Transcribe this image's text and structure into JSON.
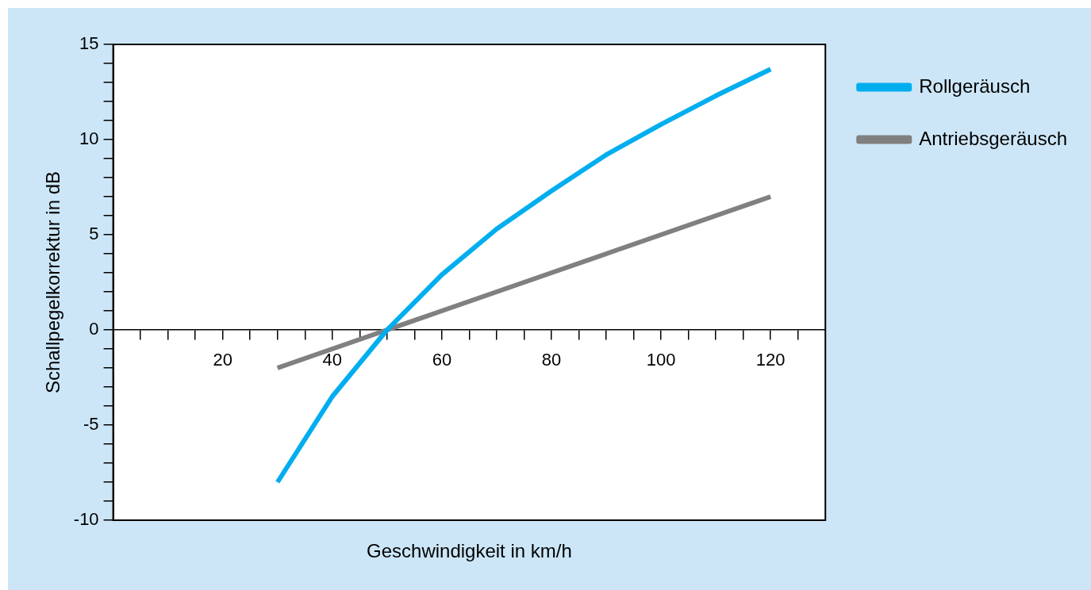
{
  "chart_data": {
    "type": "line",
    "xlabel": "Geschwindigkeit in km/h",
    "ylabel": "Schallpegelkorrektur in dB",
    "xlim": [
      0,
      130
    ],
    "xticks": [
      {
        "value": 5,
        "label": null
      },
      {
        "value": 10,
        "label": null
      },
      {
        "value": 15,
        "label": null
      },
      20,
      {
        "value": 25,
        "label": null
      },
      {
        "value": 30,
        "label": null
      },
      {
        "value": 35,
        "label": null
      },
      40,
      {
        "value": 45,
        "label": null
      },
      {
        "value": 50,
        "label": null
      },
      {
        "value": 55,
        "label": null
      },
      60,
      {
        "value": 65,
        "label": null
      },
      {
        "value": 70,
        "label": null
      },
      {
        "value": 75,
        "label": null
      },
      80,
      {
        "value": 85,
        "label": null
      },
      {
        "value": 90,
        "label": null
      },
      {
        "value": 95,
        "label": null
      },
      100,
      {
        "value": 105,
        "label": null
      },
      {
        "value": 110,
        "label": null
      },
      {
        "value": 115,
        "label": null
      },
      120,
      {
        "value": 125,
        "label": null
      }
    ],
    "ylim": [
      -10,
      15
    ],
    "yticks": [
      -10,
      {
        "value": -9,
        "label": null
      },
      {
        "value": -8,
        "label": null
      },
      {
        "value": -7,
        "label": null
      },
      {
        "value": -6,
        "label": null
      },
      -5,
      {
        "value": -4,
        "label": null
      },
      {
        "value": -3,
        "label": null
      },
      {
        "value": -2,
        "label": null
      },
      {
        "value": -1,
        "label": null
      },
      0,
      {
        "value": 1,
        "label": null
      },
      {
        "value": 2,
        "label": null
      },
      {
        "value": 3,
        "label": null
      },
      {
        "value": 4,
        "label": null
      },
      5,
      {
        "value": 6,
        "label": null
      },
      {
        "value": 7,
        "label": null
      },
      {
        "value": 8,
        "label": null
      },
      {
        "value": 9,
        "label": null
      },
      10,
      {
        "value": 11,
        "label": null
      },
      {
        "value": 12,
        "label": null
      },
      {
        "value": 13,
        "label": null
      },
      {
        "value": 14,
        "label": null
      },
      15
    ],
    "grid": false,
    "legend": "right",
    "marker": "none",
    "line_style": "solid",
    "series": [
      {
        "name": "Rollgeräusch",
        "color": "#00aeef",
        "x": [
          30,
          40,
          50,
          60,
          70,
          80,
          90,
          100,
          110,
          120
        ],
        "values": [
          -8,
          -3.5,
          0,
          2.9,
          5.3,
          7.3,
          9.2,
          10.8,
          12.3,
          13.7
        ]
      },
      {
        "name": "Antriebsgeräusch",
        "color": "#808080",
        "x": [
          30,
          40,
          50,
          60,
          70,
          80,
          90,
          100,
          110,
          120
        ],
        "values": [
          -2,
          -1,
          0,
          1,
          2,
          3,
          4,
          5,
          6,
          7
        ]
      }
    ]
  }
}
